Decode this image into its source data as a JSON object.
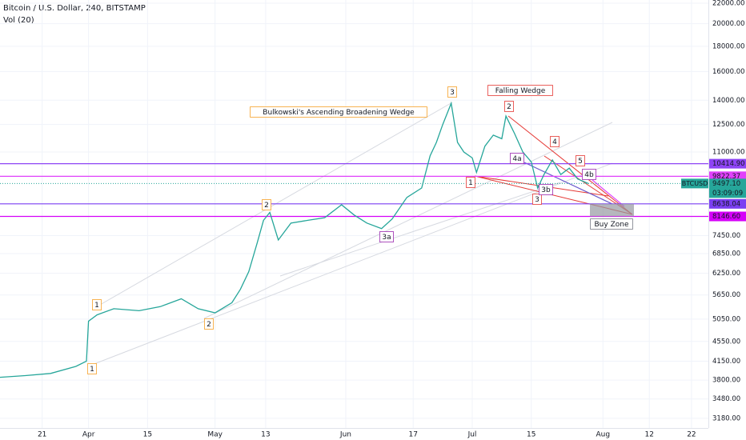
{
  "chart_data": {
    "type": "line",
    "title": "Bitcoin / U.S. Dollar, 240, BITSTAMP",
    "subtitle": "Vol (20)",
    "log_scale": true,
    "grid": true,
    "series": [
      {
        "name": "BTCUSD",
        "color": "#26a69a",
        "x": [
          70,
          76,
          82,
          88,
          90.5,
          91,
          93,
          97,
          103,
          108,
          113,
          117,
          121,
          125,
          127,
          129,
          131,
          132.5,
          134,
          136,
          139,
          143,
          147,
          151,
          154,
          157,
          160.5,
          163,
          166.5,
          170,
          172,
          173.5,
          175,
          177,
          178.5,
          180,
          182,
          183,
          185,
          187,
          189,
          190,
          192,
          194,
          196,
          197.5,
          199,
          201,
          203,
          205,
          207,
          209.5
        ],
        "values": [
          3850,
          3880,
          3920,
          4050,
          4150,
          5000,
          5150,
          5300,
          5250,
          5350,
          5550,
          5300,
          5200,
          5450,
          5800,
          6300,
          7200,
          8000,
          8300,
          7300,
          7900,
          8000,
          8100,
          8600,
          8200,
          7900,
          7700,
          8050,
          8900,
          9300,
          10800,
          11500,
          12500,
          13800,
          11500,
          11000,
          10700,
          10000,
          11300,
          11900,
          11700,
          13000,
          12000,
          11000,
          10500,
          9300,
          9900,
          10600,
          9900,
          10200,
          9700,
          9500
        ]
      }
    ],
    "xlim": [
      70,
      238
    ],
    "ylim": [
      3040,
      22330
    ],
    "xticks": [
      {
        "value": 80,
        "label": "21"
      },
      {
        "value": 91,
        "label": "Apr"
      },
      {
        "value": 105,
        "label": "15"
      },
      {
        "value": 121,
        "label": "May"
      },
      {
        "value": 133,
        "label": "13"
      },
      {
        "value": 152,
        "label": "Jun"
      },
      {
        "value": 168,
        "label": "17"
      },
      {
        "value": 182,
        "label": "Jul"
      },
      {
        "value": 196,
        "label": "15"
      },
      {
        "value": 213,
        "label": "Aug"
      },
      {
        "value": 224,
        "label": "12"
      },
      {
        "value": 234,
        "label": "22"
      }
    ],
    "yticks": [
      {
        "value": 3180,
        "label": "3180.00"
      },
      {
        "value": 3480,
        "label": "3480.00"
      },
      {
        "value": 3800,
        "label": "3800.00"
      },
      {
        "value": 4150,
        "label": "4150.00"
      },
      {
        "value": 4550,
        "label": "4550.00"
      },
      {
        "value": 5050,
        "label": "5050.00"
      },
      {
        "value": 5650,
        "label": "5650.00"
      },
      {
        "value": 6250,
        "label": "6250.00"
      },
      {
        "value": 6850,
        "label": "6850.00"
      },
      {
        "value": 7450,
        "label": "7450.00"
      },
      {
        "value": 11000,
        "label": "11000.00"
      },
      {
        "value": 12500,
        "label": "12500.00"
      },
      {
        "value": 14000,
        "label": "14000.00"
      },
      {
        "value": 16000,
        "label": "16000.00"
      },
      {
        "value": 18000,
        "label": "18000.00"
      },
      {
        "value": 20000,
        "label": "20000.00"
      },
      {
        "value": 22000,
        "label": "22000.00"
      }
    ],
    "price_levels": [
      {
        "value": 10414.9,
        "label": "10414.90",
        "color": "#8e44f5"
      },
      {
        "value": 9822.37,
        "label": "9822.37",
        "color": "#e040fb"
      },
      {
        "value": 8638.04,
        "label": "8638.04",
        "color": "#7b3ff2"
      },
      {
        "value": 8146.6,
        "label": "8146.60",
        "color": "#d500f9"
      }
    ],
    "last_price": {
      "value": 9497.1,
      "label": "9497.10",
      "name": "BTCUSD",
      "countdown": "03:09:09",
      "color": "#26a69a"
    },
    "annotations": [
      {
        "text": "Bulkowski's Ascending Broadening Wedge",
        "color": "#f7a128"
      },
      {
        "text": "Falling Wedge",
        "color": "#e53935"
      },
      {
        "text": "Buy Zone",
        "color": "#787b86"
      },
      {
        "text": "1",
        "color": "#f7a128"
      },
      {
        "text": "2",
        "color": "#f7a128"
      },
      {
        "text": "3",
        "color": "#f7a128"
      },
      {
        "text": "1",
        "color": "#f7a128"
      },
      {
        "text": "2",
        "color": "#f7a128"
      },
      {
        "text": "3a",
        "color": "#9c27b0"
      },
      {
        "text": "1",
        "color": "#e53935"
      },
      {
        "text": "2",
        "color": "#e53935"
      },
      {
        "text": "3",
        "color": "#e53935"
      },
      {
        "text": "4",
        "color": "#e53935"
      },
      {
        "text": "5",
        "color": "#e53935"
      },
      {
        "text": "4a",
        "color": "#9c27b0"
      },
      {
        "text": "3b",
        "color": "#9c27b0"
      },
      {
        "text": "4b",
        "color": "#9c27b0"
      }
    ]
  }
}
